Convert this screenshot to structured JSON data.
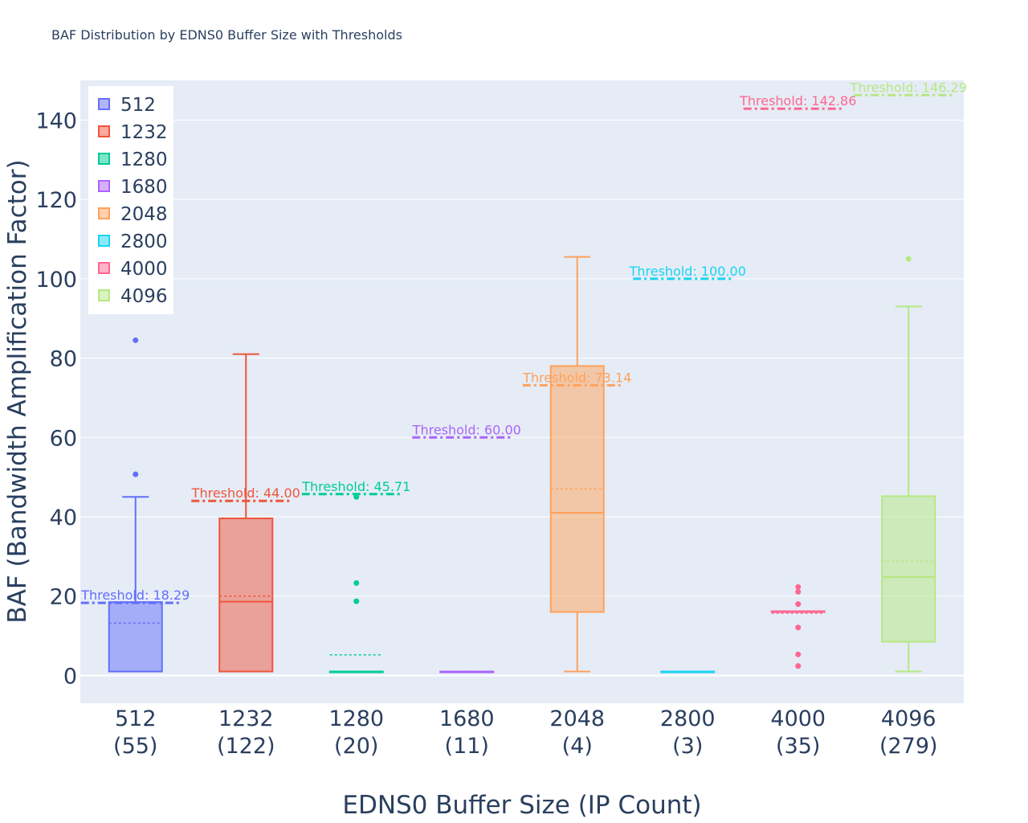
{
  "chart_data": {
    "type": "box",
    "title": "BAF Distribution by EDNS0 Buffer Size with Thresholds",
    "xlabel": "EDNS0 Buffer Size (IP Count)",
    "ylabel": "BAF (Bandwidth Amplification Factor)",
    "ylim": [
      -7,
      150
    ],
    "yticks": [
      0,
      20,
      40,
      60,
      80,
      100,
      120,
      140
    ],
    "grid": true,
    "legend_position": "top-left",
    "series": [
      {
        "name": "512",
        "category": "512",
        "count": "(55)",
        "color": "#636efa",
        "min": 1,
        "q1": 1,
        "median": 1,
        "q3": 18.5,
        "max": 45,
        "mean": 13.2,
        "outliers": [
          50.7,
          84.5
        ],
        "threshold": 18.29,
        "threshold_label": "Threshold: 18.29"
      },
      {
        "name": "1232",
        "category": "1232",
        "count": "(122)",
        "color": "#ef553b",
        "min": 1,
        "q1": 1,
        "median": 18.6,
        "q3": 39.6,
        "max": 81,
        "mean": 20,
        "outliers": [],
        "threshold": 44.0,
        "threshold_label": "Threshold: 44.00"
      },
      {
        "name": "1280",
        "category": "1280",
        "count": "(20)",
        "color": "#00cc96",
        "min": 1,
        "q1": 1,
        "median": 1,
        "q3": 1,
        "max": 1,
        "mean": 5.2,
        "outliers": [
          18.7,
          23.3,
          45
        ],
        "threshold": 45.71,
        "threshold_label": "Threshold: 45.71"
      },
      {
        "name": "1680",
        "category": "1680",
        "count": "(11)",
        "color": "#ab63fa",
        "min": 1,
        "q1": 1,
        "median": 1,
        "q3": 1,
        "max": 1,
        "mean": 1,
        "outliers": [],
        "threshold": 60.0,
        "threshold_label": "Threshold: 60.00"
      },
      {
        "name": "2048",
        "category": "2048",
        "count": "(4)",
        "color": "#ffa15a",
        "min": 1,
        "q1": 16,
        "median": 41,
        "q3": 78,
        "max": 105.5,
        "mean": 47,
        "outliers": [],
        "threshold": 73.14,
        "threshold_label": "Threshold: 73.14"
      },
      {
        "name": "2800",
        "category": "2800",
        "count": "(3)",
        "color": "#19d3f3",
        "min": 1,
        "q1": 1,
        "median": 1,
        "q3": 1,
        "max": 1,
        "mean": 1,
        "outliers": [],
        "threshold": 100.0,
        "threshold_label": "Threshold: 100.00"
      },
      {
        "name": "4000",
        "category": "4000",
        "count": "(35)",
        "color": "#ff6692",
        "min": 16.2,
        "q1": 16.2,
        "median": 16.2,
        "q3": 16.2,
        "max": 16.2,
        "mean": 15.7,
        "outliers": [
          2.4,
          5.3,
          12.1,
          18,
          21.1,
          22.3
        ],
        "threshold": 142.86,
        "threshold_label": "Threshold: 142.86"
      },
      {
        "name": "4096",
        "category": "4096",
        "count": "(279)",
        "color": "#b6e880",
        "min": 1,
        "q1": 8.5,
        "median": 24.8,
        "q3": 45.2,
        "max": 93,
        "mean": 28.8,
        "outliers": [
          105
        ],
        "threshold": 146.29,
        "threshold_label": "Threshold: 146.29"
      }
    ]
  }
}
